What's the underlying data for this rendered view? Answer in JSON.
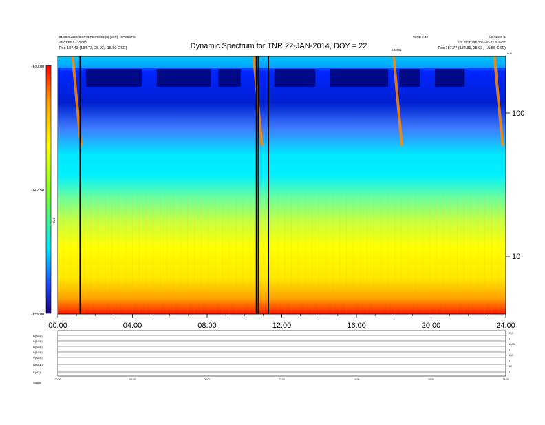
{
  "header": {
    "title": "Dynamic Spectrum for TNR 22-JAN-2014, DOY = 22",
    "left_line1": "01:00:0 ±10000 SPHERE:FE003 (0) (WIR) · SPECSPC",
    "left_line2": "ANGFES 0 ±10:000",
    "left_pos": "Pos    187.43 (184.73, 25.03, -15.50 GSE)",
    "right_line0": "WIND  2.40",
    "right_line0b": "L2 #1000+1",
    "right_line1": "SOLPICTURE 2014-01-22 RANGE",
    "right_pos": "Pos    187.77 (184.89, 25.03, -15.56 GSE)",
    "mid_tag": "SIMON"
  },
  "colorbar": {
    "label": "TNR",
    "ticks": [
      "-130.00",
      "-142.50",
      "-155.00"
    ]
  },
  "right_axis": {
    "ticks": [
      "100",
      "10"
    ],
    "top_tag": "kHz"
  },
  "x_axis": {
    "ticks": [
      "00:00",
      "04:00",
      "08:00",
      "12:00",
      "16:00",
      "20:00",
      "24:00"
    ]
  },
  "panels": {
    "labels": [
      "B(ACE)",
      "B(ACE)",
      "B(ACE)",
      "B(ACE)",
      "V(ACE)",
      "N(ACE)",
      "B(NT)"
    ],
    "right_vals": [
      "200",
      "0",
      "1000",
      "0",
      "500",
      "0",
      "10",
      "0"
    ],
    "footer": "Status:"
  },
  "chart_data": {
    "type": "heatmap",
    "title": "Dynamic Spectrum for TNR 22-JAN-2014, DOY = 22",
    "x_range_hours": [
      0,
      24
    ],
    "x_ticks": [
      "00:00",
      "04:00",
      "08:00",
      "12:00",
      "16:00",
      "20:00",
      "24:00"
    ],
    "y_axis": {
      "scale": "log",
      "ticks": [
        100,
        10
      ]
    },
    "colorbar": {
      "range": [
        -155.0,
        -130.0
      ],
      "ticks": [
        -130.0,
        -142.5,
        -155.0
      ],
      "label": "TNR"
    },
    "colors": {
      "low": "#1a0080",
      "mid_low": "#00e5ff",
      "mid": "#7cff2a",
      "mid_high": "#ffff00",
      "high": "#ff0000"
    },
    "bursts_hours": [
      0.8,
      10.5,
      18.0,
      23.4
    ],
    "data_gaps_hours": [
      1.2,
      10.65,
      10.75,
      11.3
    ]
  }
}
